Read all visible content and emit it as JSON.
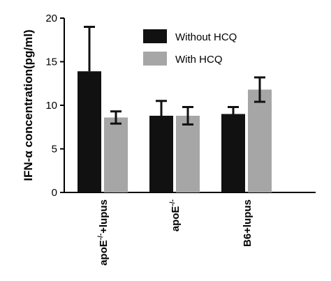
{
  "chart_data": {
    "type": "bar",
    "ylabel": "IFN-α concentration(pg/ml)",
    "xlabel": "",
    "ylim": [
      0,
      20
    ],
    "yticks": [
      "0",
      "5",
      "10",
      "15",
      "20"
    ],
    "categories": [
      "apoE⁻/⁻+lupus",
      "apoE⁻/⁻",
      "B6+lupus"
    ],
    "category_parts": [
      {
        "base": "apoE",
        "sup": "-/-",
        "rest": "+lupus"
      },
      {
        "base": "apoE",
        "sup": "-/-",
        "rest": ""
      },
      {
        "base": "B6+lupus",
        "sup": "",
        "rest": ""
      }
    ],
    "series": [
      {
        "name": "Without HCQ",
        "color": "#111111",
        "values": [
          13.9,
          8.8,
          9.0
        ],
        "errors": [
          5.1,
          1.7,
          0.8
        ]
      },
      {
        "name": "With HCQ",
        "color": "#a6a6a6",
        "values": [
          8.6,
          8.8,
          11.8
        ],
        "errors": [
          0.7,
          1.0,
          1.4
        ]
      }
    ],
    "legend_position": "top-right",
    "grid": false
  }
}
